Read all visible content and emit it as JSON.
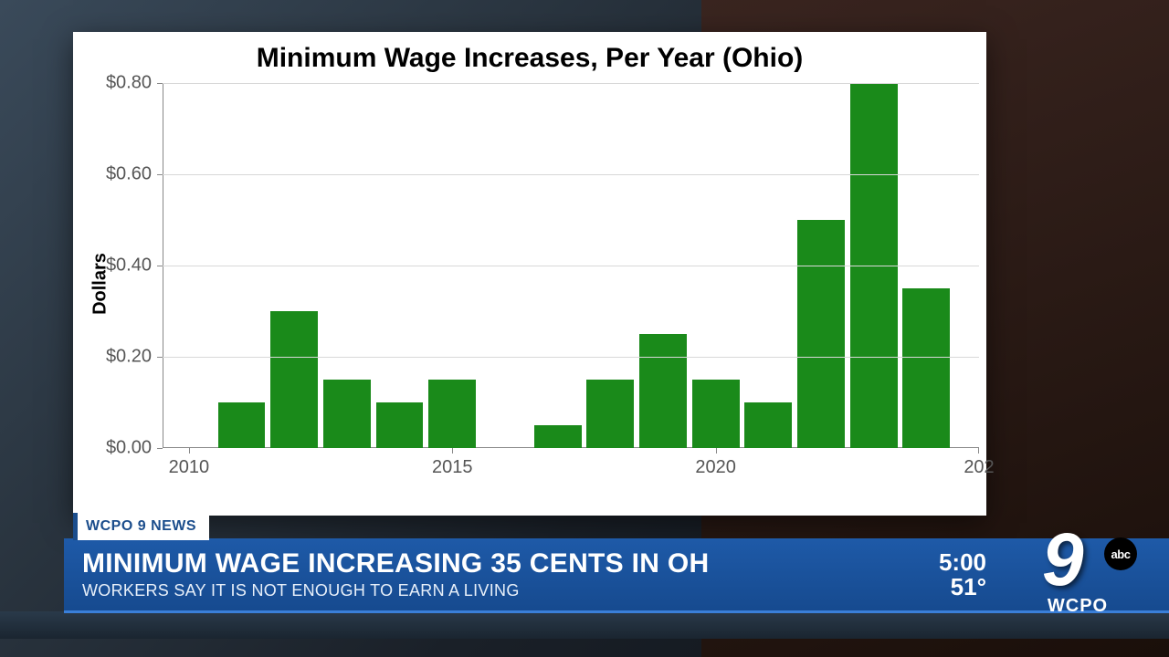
{
  "chart": {
    "type": "bar",
    "title": "Minimum Wage Increases, Per Year (Ohio)",
    "title_fontsize": 30,
    "ylabel": "Dollars",
    "label_fontsize": 20,
    "background_color": "#ffffff",
    "grid_color": "#d8d8d8",
    "axis_color": "#888888",
    "tick_color": "#555555",
    "bar_color": "#1a8a1a",
    "ylim": [
      0,
      0.8
    ],
    "yticks": [
      0.0,
      0.2,
      0.4,
      0.6,
      0.8
    ],
    "ytick_labels": [
      "$0.00",
      "$0.20",
      "$0.40",
      "$0.60",
      "$0.80"
    ],
    "xlim": [
      2009.5,
      2025
    ],
    "xticks": [
      2010,
      2015,
      2020
    ],
    "xticks_partial_right": "202",
    "xtick_labels": [
      "2010",
      "2015",
      "2020"
    ],
    "bar_width": 0.9,
    "years": [
      2011,
      2012,
      2013,
      2014,
      2015,
      2017,
      2018,
      2019,
      2020,
      2021,
      2022,
      2023,
      2024
    ],
    "values": [
      0.1,
      0.3,
      0.15,
      0.1,
      0.15,
      0.05,
      0.15,
      0.25,
      0.15,
      0.1,
      0.5,
      0.8,
      0.35
    ]
  },
  "lower_third": {
    "tag_label": "WCPO 9 NEWS",
    "headline": "MINIMUM WAGE INCREASING 35 CENTS IN OH",
    "subheadline": "WORKERS SAY IT IS NOT ENOUGH TO EARN A LIVING",
    "banner_bg_top": "#1e5aa8",
    "banner_bg_bottom": "#164a8f",
    "tag_bg": "#ffffff",
    "tag_text_color": "#1b4d8c",
    "headline_fontsize": 30,
    "subheadline_fontsize": 18
  },
  "clock": {
    "time": "5:00",
    "temperature": "51°"
  },
  "station": {
    "logo_number": "9",
    "network_badge": "abc",
    "call_letters": "WCPO"
  }
}
